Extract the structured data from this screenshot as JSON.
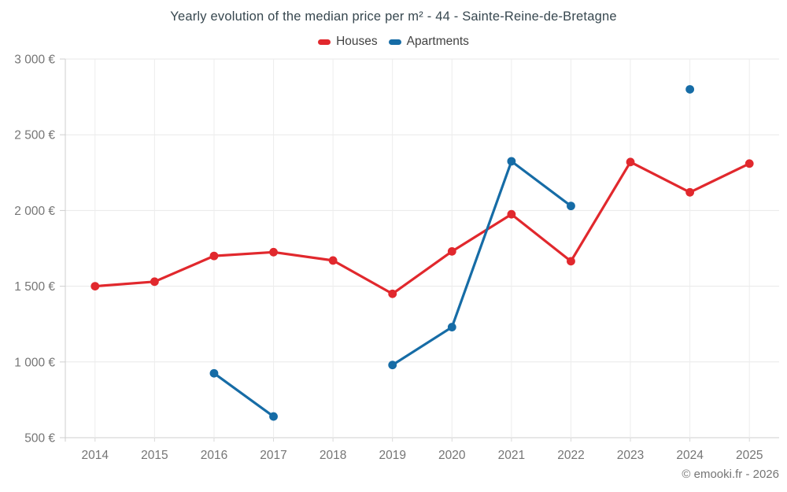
{
  "chart_data": {
    "type": "line",
    "title": "Yearly evolution of the median price per m² - 44 - Sainte-Reine-de-Bretagne",
    "categories": [
      "2014",
      "2015",
      "2016",
      "2017",
      "2018",
      "2019",
      "2020",
      "2021",
      "2022",
      "2023",
      "2024",
      "2025"
    ],
    "series": [
      {
        "name": "Houses",
        "color": "#e1282d",
        "values": [
          1500,
          1530,
          1700,
          1725,
          1670,
          1450,
          1730,
          1975,
          1665,
          2320,
          2120,
          2310
        ]
      },
      {
        "name": "Apartments",
        "color": "#166ca6",
        "values": [
          null,
          null,
          925,
          640,
          null,
          980,
          1230,
          2325,
          2030,
          null,
          2800,
          null
        ]
      }
    ],
    "xlabel": "",
    "ylabel": "",
    "ylim": [
      500,
      3000
    ],
    "ytick_values": [
      500,
      1000,
      1500,
      2000,
      2500,
      3000
    ],
    "ytick_labels": [
      "500 €",
      "1 000 €",
      "1 500 €",
      "2 000 €",
      "2 500 €",
      "3 000 €"
    ],
    "grid": true,
    "legend_position": "top"
  },
  "footer": {
    "credits": "© emooki.fr - 2026"
  },
  "colors": {
    "title_text": "#37474f",
    "legend_text": "#424242",
    "axis_label_text": "#757575",
    "gridline": "#e8e8e8",
    "axis_line": "#cfcfcf"
  }
}
